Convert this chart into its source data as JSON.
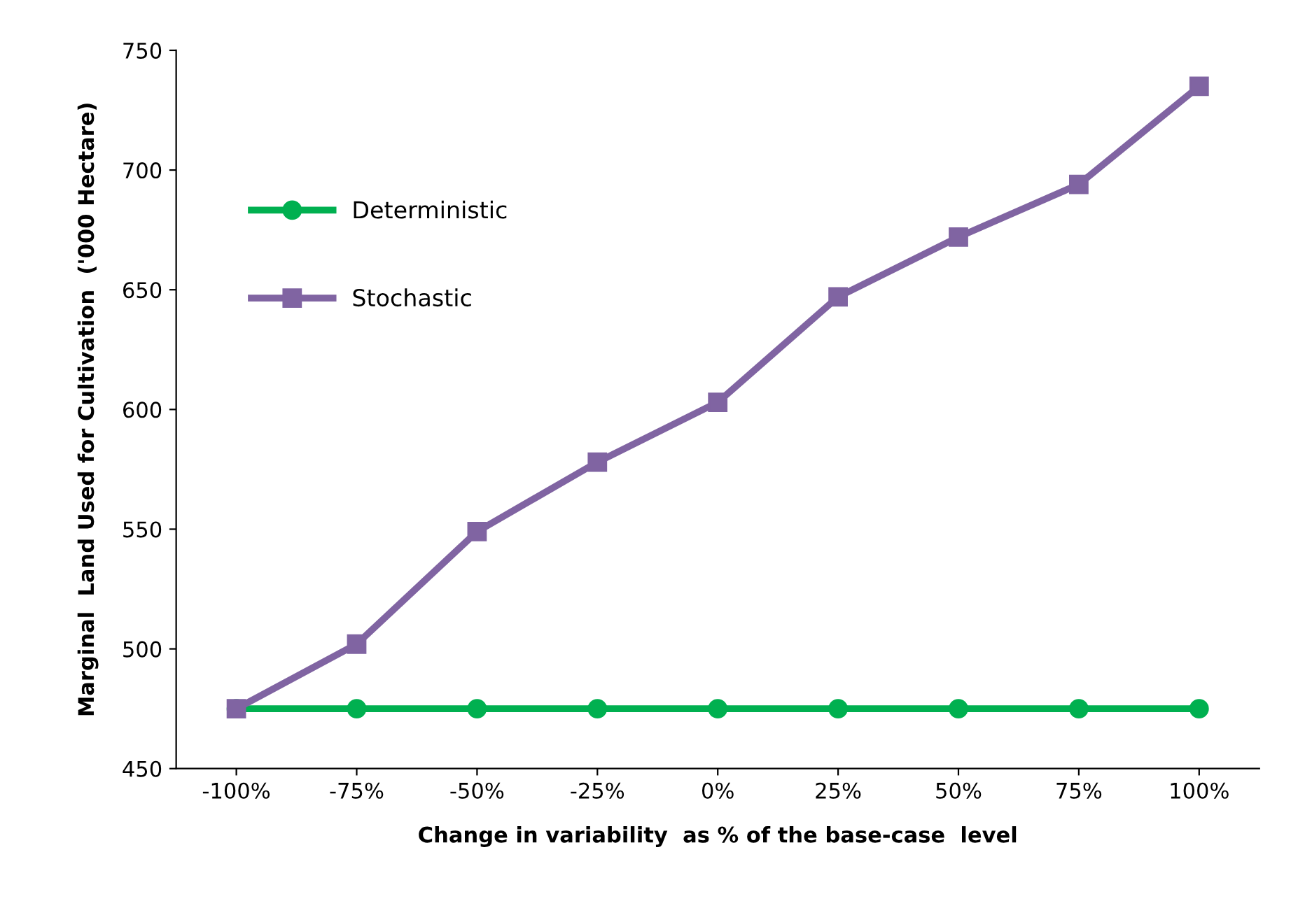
{
  "chart_data": {
    "type": "line",
    "xlabel": "Change in variability  as % of the base-case  level",
    "ylabel": "Marginal  Land Used for Cultivation  ('000 Hectare)",
    "categories": [
      "-100%",
      "-75%",
      "-50%",
      "-25%",
      "0%",
      "25%",
      "50%",
      "75%",
      "100%"
    ],
    "series": [
      {
        "name": "Deterministic",
        "color": "#00b050",
        "marker": "circle",
        "values": [
          475,
          475,
          475,
          475,
          475,
          475,
          475,
          475,
          475
        ]
      },
      {
        "name": "Stochastic",
        "color": "#8064a2",
        "marker": "square",
        "values": [
          475,
          502,
          549,
          578,
          603,
          647,
          672,
          694,
          735
        ]
      }
    ],
    "ylim": [
      450,
      750
    ],
    "yticks": [
      450,
      500,
      550,
      600,
      650,
      700,
      750
    ],
    "grid": false,
    "legend": "top left",
    "line_style": "solid"
  }
}
